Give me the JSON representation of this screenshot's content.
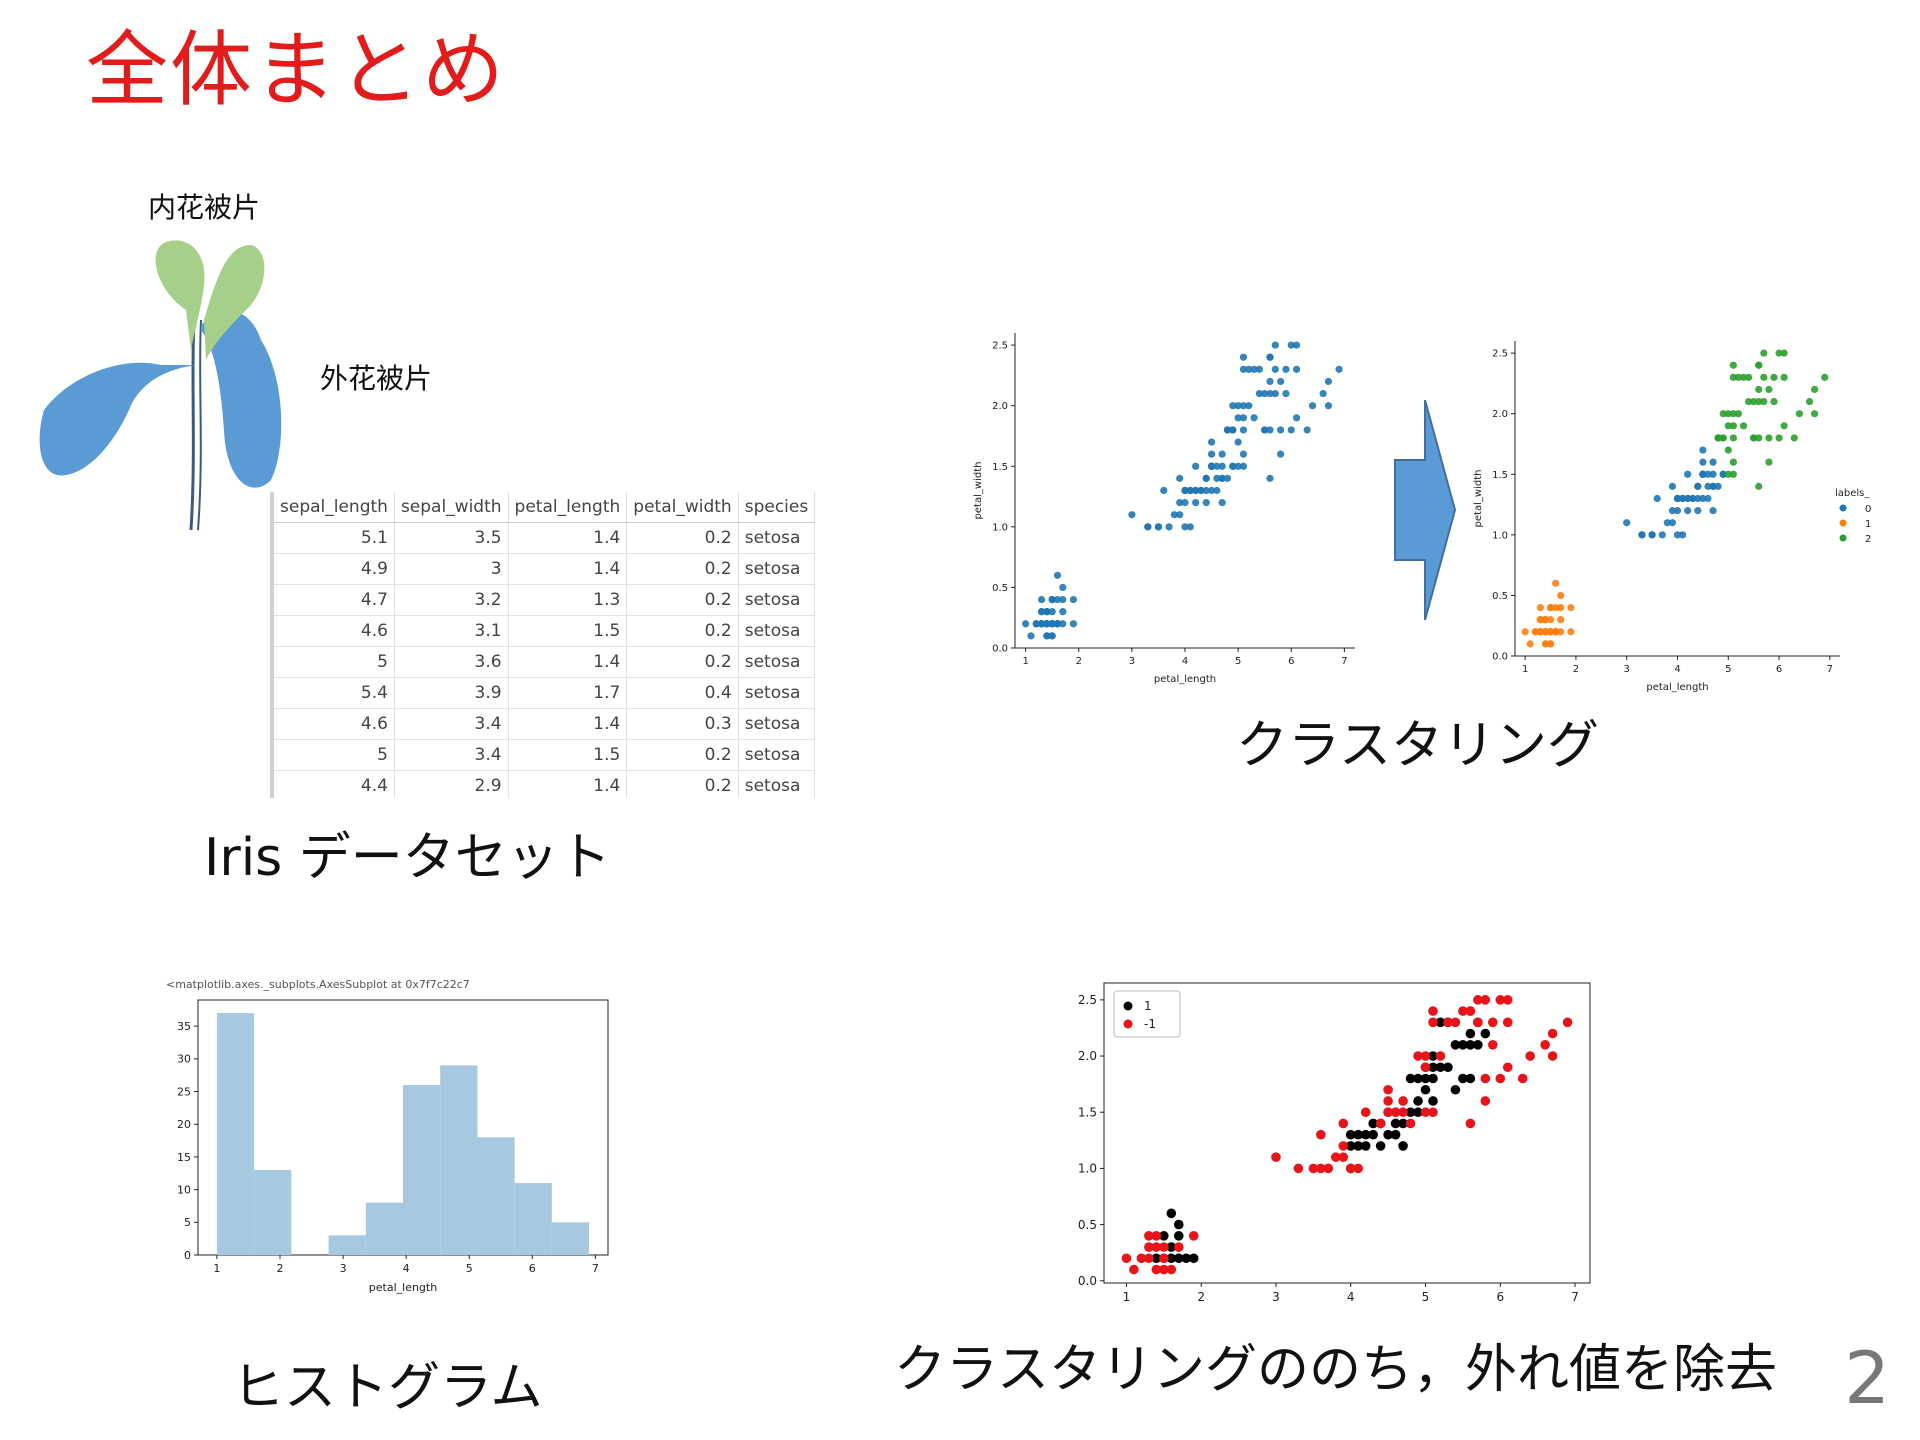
{
  "slide": {
    "title": "全体まとめ",
    "page_number": "2"
  },
  "flower": {
    "inner_label": "内花被片",
    "outer_label": "外花被片",
    "colors": {
      "inner": "#a6d08a",
      "outer": "#5b9bd5"
    }
  },
  "iris_table": {
    "columns": [
      "sepal_length",
      "sepal_width",
      "petal_length",
      "petal_width",
      "species"
    ],
    "rows": [
      [
        "5.1",
        "3.5",
        "1.4",
        "0.2",
        "setosa"
      ],
      [
        "4.9",
        "3",
        "1.4",
        "0.2",
        "setosa"
      ],
      [
        "4.7",
        "3.2",
        "1.3",
        "0.2",
        "setosa"
      ],
      [
        "4.6",
        "3.1",
        "1.5",
        "0.2",
        "setosa"
      ],
      [
        "5",
        "3.6",
        "1.4",
        "0.2",
        "setosa"
      ],
      [
        "5.4",
        "3.9",
        "1.7",
        "0.4",
        "setosa"
      ],
      [
        "4.6",
        "3.4",
        "1.4",
        "0.3",
        "setosa"
      ],
      [
        "5",
        "3.4",
        "1.5",
        "0.2",
        "setosa"
      ],
      [
        "4.4",
        "2.9",
        "1.4",
        "0.2",
        "setosa"
      ]
    ]
  },
  "captions": {
    "dataset": "Iris データセット",
    "clustering": "クラスタリング",
    "histogram": "ヒストグラム",
    "outlier": "クラスタリングののち，外れ値を除去"
  },
  "chart_data": [
    {
      "type": "scatter",
      "xlabel": "petal_length",
      "ylabel": "petal_width",
      "xlim": [
        0.8,
        7.2
      ],
      "ylim": [
        0,
        2.6
      ],
      "xticks": [
        "1",
        "2",
        "3",
        "4",
        "5",
        "6",
        "7"
      ],
      "yticks": [
        "0.0",
        "0.5",
        "1.0",
        "1.5",
        "2.0",
        "2.5"
      ],
      "color": "#1f77b4",
      "points": [
        [
          1.4,
          0.2
        ],
        [
          1.4,
          0.2
        ],
        [
          1.3,
          0.2
        ],
        [
          1.5,
          0.2
        ],
        [
          1.4,
          0.2
        ],
        [
          1.7,
          0.4
        ],
        [
          1.4,
          0.3
        ],
        [
          1.5,
          0.2
        ],
        [
          1.4,
          0.2
        ],
        [
          1.5,
          0.1
        ],
        [
          1.5,
          0.2
        ],
        [
          1.6,
          0.2
        ],
        [
          1.4,
          0.1
        ],
        [
          1.1,
          0.1
        ],
        [
          1.2,
          0.2
        ],
        [
          1.5,
          0.4
        ],
        [
          1.3,
          0.4
        ],
        [
          1.4,
          0.3
        ],
        [
          1.7,
          0.3
        ],
        [
          1.5,
          0.3
        ],
        [
          1.7,
          0.2
        ],
        [
          1.5,
          0.4
        ],
        [
          1.0,
          0.2
        ],
        [
          1.7,
          0.5
        ],
        [
          1.9,
          0.2
        ],
        [
          1.6,
          0.2
        ],
        [
          1.6,
          0.4
        ],
        [
          1.5,
          0.2
        ],
        [
          1.4,
          0.2
        ],
        [
          1.6,
          0.2
        ],
        [
          1.6,
          0.2
        ],
        [
          1.5,
          0.4
        ],
        [
          1.5,
          0.1
        ],
        [
          1.4,
          0.2
        ],
        [
          1.5,
          0.2
        ],
        [
          1.2,
          0.2
        ],
        [
          1.3,
          0.2
        ],
        [
          1.4,
          0.1
        ],
        [
          1.3,
          0.2
        ],
        [
          1.5,
          0.2
        ],
        [
          1.3,
          0.3
        ],
        [
          1.3,
          0.3
        ],
        [
          1.3,
          0.2
        ],
        [
          1.6,
          0.6
        ],
        [
          1.9,
          0.4
        ],
        [
          1.4,
          0.3
        ],
        [
          1.6,
          0.2
        ],
        [
          1.4,
          0.2
        ],
        [
          1.5,
          0.2
        ],
        [
          1.4,
          0.2
        ],
        [
          4.7,
          1.4
        ],
        [
          4.5,
          1.5
        ],
        [
          4.9,
          1.5
        ],
        [
          4.0,
          1.3
        ],
        [
          4.6,
          1.5
        ],
        [
          4.5,
          1.3
        ],
        [
          4.7,
          1.6
        ],
        [
          3.3,
          1.0
        ],
        [
          4.6,
          1.3
        ],
        [
          3.9,
          1.4
        ],
        [
          3.5,
          1.0
        ],
        [
          4.2,
          1.5
        ],
        [
          4.0,
          1.0
        ],
        [
          4.7,
          1.4
        ],
        [
          3.6,
          1.3
        ],
        [
          4.4,
          1.4
        ],
        [
          4.5,
          1.5
        ],
        [
          4.1,
          1.0
        ],
        [
          4.5,
          1.5
        ],
        [
          3.9,
          1.1
        ],
        [
          4.8,
          1.8
        ],
        [
          4.0,
          1.3
        ],
        [
          4.9,
          1.5
        ],
        [
          4.7,
          1.2
        ],
        [
          4.3,
          1.3
        ],
        [
          4.4,
          1.4
        ],
        [
          4.8,
          1.4
        ],
        [
          5.0,
          1.7
        ],
        [
          4.5,
          1.5
        ],
        [
          3.5,
          1.0
        ],
        [
          3.8,
          1.1
        ],
        [
          3.7,
          1.0
        ],
        [
          3.9,
          1.2
        ],
        [
          5.1,
          1.6
        ],
        [
          4.5,
          1.5
        ],
        [
          4.5,
          1.6
        ],
        [
          4.7,
          1.5
        ],
        [
          4.4,
          1.3
        ],
        [
          4.1,
          1.3
        ],
        [
          4.0,
          1.3
        ],
        [
          4.4,
          1.2
        ],
        [
          4.6,
          1.4
        ],
        [
          4.0,
          1.2
        ],
        [
          3.3,
          1.0
        ],
        [
          4.2,
          1.3
        ],
        [
          4.2,
          1.2
        ],
        [
          4.2,
          1.3
        ],
        [
          4.3,
          1.3
        ],
        [
          3.0,
          1.1
        ],
        [
          4.1,
          1.3
        ],
        [
          6.0,
          2.5
        ],
        [
          5.1,
          1.9
        ],
        [
          5.9,
          2.1
        ],
        [
          5.6,
          1.8
        ],
        [
          5.8,
          2.2
        ],
        [
          6.6,
          2.1
        ],
        [
          4.5,
          1.7
        ],
        [
          6.3,
          1.8
        ],
        [
          5.8,
          1.8
        ],
        [
          6.1,
          2.5
        ],
        [
          5.1,
          2.0
        ],
        [
          5.3,
          1.9
        ],
        [
          5.5,
          2.1
        ],
        [
          5.0,
          2.0
        ],
        [
          5.1,
          2.4
        ],
        [
          5.3,
          2.3
        ],
        [
          5.5,
          1.8
        ],
        [
          6.7,
          2.2
        ],
        [
          6.9,
          2.3
        ],
        [
          5.0,
          1.5
        ],
        [
          5.7,
          2.3
        ],
        [
          4.9,
          2.0
        ],
        [
          6.7,
          2.0
        ],
        [
          4.9,
          1.8
        ],
        [
          5.7,
          2.1
        ],
        [
          6.0,
          1.8
        ],
        [
          4.8,
          1.8
        ],
        [
          4.9,
          1.8
        ],
        [
          5.6,
          2.1
        ],
        [
          5.8,
          1.6
        ],
        [
          6.1,
          1.9
        ],
        [
          6.4,
          2.0
        ],
        [
          5.6,
          2.2
        ],
        [
          5.1,
          1.5
        ],
        [
          5.6,
          1.4
        ],
        [
          6.1,
          2.3
        ],
        [
          5.6,
          2.4
        ],
        [
          5.5,
          1.8
        ],
        [
          4.8,
          1.8
        ],
        [
          5.4,
          2.1
        ],
        [
          5.6,
          2.4
        ],
        [
          5.1,
          2.3
        ],
        [
          5.9,
          2.3
        ],
        [
          5.7,
          2.5
        ],
        [
          5.2,
          2.3
        ],
        [
          5.0,
          1.9
        ],
        [
          5.2,
          2.0
        ],
        [
          5.4,
          2.3
        ],
        [
          5.1,
          1.8
        ]
      ]
    },
    {
      "type": "scatter",
      "xlabel": "petal_length",
      "ylabel": "petal_width",
      "xlim": [
        0.8,
        7.2
      ],
      "ylim": [
        0,
        2.6
      ],
      "xticks": [
        "1",
        "2",
        "3",
        "4",
        "5",
        "6",
        "7"
      ],
      "yticks": [
        "0.0",
        "0.5",
        "1.0",
        "1.5",
        "2.0",
        "2.5"
      ],
      "legend": {
        "title": "labels_",
        "position": "right",
        "entries": [
          "0",
          "1",
          "2"
        ],
        "colors": [
          "#1f77b4",
          "#ff7f0e",
          "#2ca02c"
        ]
      },
      "label_rule": "points with x<2.5 are label 1; points with x>=2.5 and (x>=5.0 or y>=1.8) are label 2; others label 0"
    },
    {
      "type": "bar",
      "title": "<matplotlib.axes._subplots.AxesSubplot at 0x7f7c22c7",
      "xlabel": "petal_length",
      "ylabel": "",
      "bin_edges": [
        1.0,
        1.59,
        2.18,
        2.77,
        3.36,
        3.95,
        4.54,
        5.13,
        5.72,
        6.31,
        6.9
      ],
      "values": [
        37,
        13,
        0,
        3,
        8,
        26,
        29,
        18,
        11,
        5
      ],
      "xlim": [
        0.7,
        7.2
      ],
      "ylim": [
        0,
        39
      ],
      "xticks": [
        "1",
        "2",
        "3",
        "4",
        "5",
        "6",
        "7"
      ],
      "yticks": [
        "0",
        "5",
        "10",
        "15",
        "20",
        "25",
        "30",
        "35"
      ],
      "color": "#a6c8e0"
    },
    {
      "type": "scatter",
      "xlabel": "",
      "ylabel": "",
      "xlim": [
        0.7,
        7.2
      ],
      "ylim": [
        -0.02,
        2.65
      ],
      "xticks": [
        "1",
        "2",
        "3",
        "4",
        "5",
        "6",
        "7"
      ],
      "yticks": [
        "0.0",
        "0.5",
        "1.0",
        "1.5",
        "2.0",
        "2.5"
      ],
      "legend": {
        "position": "top-left",
        "entries": [
          "1",
          "-1"
        ],
        "colors": [
          "#000000",
          "#e8141a"
        ]
      },
      "inliers": [
        [
          1.4,
          0.2
        ],
        [
          1.5,
          0.2
        ],
        [
          1.6,
          0.2
        ],
        [
          1.7,
          0.2
        ],
        [
          1.8,
          0.2
        ],
        [
          1.9,
          0.2
        ],
        [
          1.6,
          0.3
        ],
        [
          1.7,
          0.4
        ],
        [
          1.5,
          0.4
        ],
        [
          1.6,
          0.6
        ],
        [
          1.7,
          0.5
        ],
        [
          4.0,
          1.2
        ],
        [
          4.2,
          1.3
        ],
        [
          4.4,
          1.2
        ],
        [
          4.3,
          1.3
        ],
        [
          4.1,
          1.3
        ],
        [
          4.5,
          1.3
        ],
        [
          4.6,
          1.3
        ],
        [
          4.7,
          1.4
        ],
        [
          4.5,
          1.5
        ],
        [
          4.8,
          1.5
        ],
        [
          4.9,
          1.5
        ],
        [
          4.6,
          1.4
        ],
        [
          4.1,
          1.2
        ],
        [
          4.0,
          1.3
        ],
        [
          4.3,
          1.4
        ],
        [
          4.4,
          1.4
        ],
        [
          4.2,
          1.2
        ],
        [
          4.9,
          1.6
        ],
        [
          5.0,
          1.7
        ],
        [
          4.8,
          1.8
        ],
        [
          4.9,
          1.8
        ],
        [
          5.0,
          1.8
        ],
        [
          5.1,
          1.8
        ],
        [
          5.2,
          1.9
        ],
        [
          5.1,
          2.0
        ],
        [
          5.3,
          1.9
        ],
        [
          5.5,
          2.1
        ],
        [
          5.6,
          2.1
        ],
        [
          5.7,
          2.1
        ],
        [
          5.6,
          2.2
        ],
        [
          5.8,
          2.2
        ],
        [
          5.6,
          1.8
        ],
        [
          5.5,
          1.8
        ],
        [
          5.4,
          2.1
        ],
        [
          5.3,
          2.3
        ],
        [
          5.2,
          2.3
        ],
        [
          5.1,
          1.9
        ],
        [
          5.0,
          1.9
        ],
        [
          5.7,
          2.3
        ],
        [
          5.4,
          1.7
        ],
        [
          4.0,
          1.0
        ],
        [
          4.7,
          1.2
        ],
        [
          5.1,
          1.6
        ]
      ],
      "outliers": [
        [
          1.0,
          0.2
        ],
        [
          1.1,
          0.1
        ],
        [
          1.2,
          0.2
        ],
        [
          1.3,
          0.2
        ],
        [
          1.4,
          0.1
        ],
        [
          1.3,
          0.3
        ],
        [
          1.4,
          0.3
        ],
        [
          1.3,
          0.4
        ],
        [
          1.5,
          0.1
        ],
        [
          1.5,
          0.3
        ],
        [
          1.5,
          0.2
        ],
        [
          1.4,
          0.4
        ],
        [
          1.6,
          0.1
        ],
        [
          1.9,
          0.4
        ],
        [
          1.7,
          0.3
        ],
        [
          3.0,
          1.1
        ],
        [
          3.3,
          1.0
        ],
        [
          3.5,
          1.0
        ],
        [
          3.6,
          1.0
        ],
        [
          3.7,
          1.0
        ],
        [
          3.9,
          1.1
        ],
        [
          3.8,
          1.1
        ],
        [
          3.9,
          1.2
        ],
        [
          3.6,
          1.3
        ],
        [
          3.9,
          1.4
        ],
        [
          4.0,
          1.0
        ],
        [
          4.1,
          1.0
        ],
        [
          4.2,
          1.5
        ],
        [
          4.5,
          1.5
        ],
        [
          4.5,
          1.6
        ],
        [
          4.5,
          1.7
        ],
        [
          4.4,
          1.4
        ],
        [
          4.7,
          1.5
        ],
        [
          4.8,
          1.4
        ],
        [
          4.6,
          1.5
        ],
        [
          4.7,
          1.6
        ],
        [
          5.0,
          1.5
        ],
        [
          5.1,
          1.5
        ],
        [
          4.9,
          2.0
        ],
        [
          5.0,
          2.0
        ],
        [
          5.1,
          2.4
        ],
        [
          5.1,
          2.3
        ],
        [
          5.3,
          2.3
        ],
        [
          5.4,
          2.3
        ],
        [
          5.5,
          2.4
        ],
        [
          5.6,
          2.4
        ],
        [
          5.7,
          2.5
        ],
        [
          5.8,
          2.5
        ],
        [
          6.0,
          2.5
        ],
        [
          6.1,
          2.5
        ],
        [
          5.6,
          2.4
        ],
        [
          5.9,
          2.3
        ],
        [
          6.1,
          2.3
        ],
        [
          5.8,
          1.8
        ],
        [
          6.0,
          1.8
        ],
        [
          6.1,
          1.9
        ],
        [
          6.3,
          1.8
        ],
        [
          6.4,
          2.0
        ],
        [
          6.6,
          2.1
        ],
        [
          6.7,
          2.2
        ],
        [
          6.7,
          2.0
        ],
        [
          6.9,
          2.3
        ],
        [
          5.8,
          1.6
        ],
        [
          5.6,
          1.4
        ],
        [
          5.2,
          2.0
        ],
        [
          5.0,
          1.9
        ],
        [
          5.9,
          2.1
        ],
        [
          5.7,
          2.3
        ]
      ]
    }
  ]
}
